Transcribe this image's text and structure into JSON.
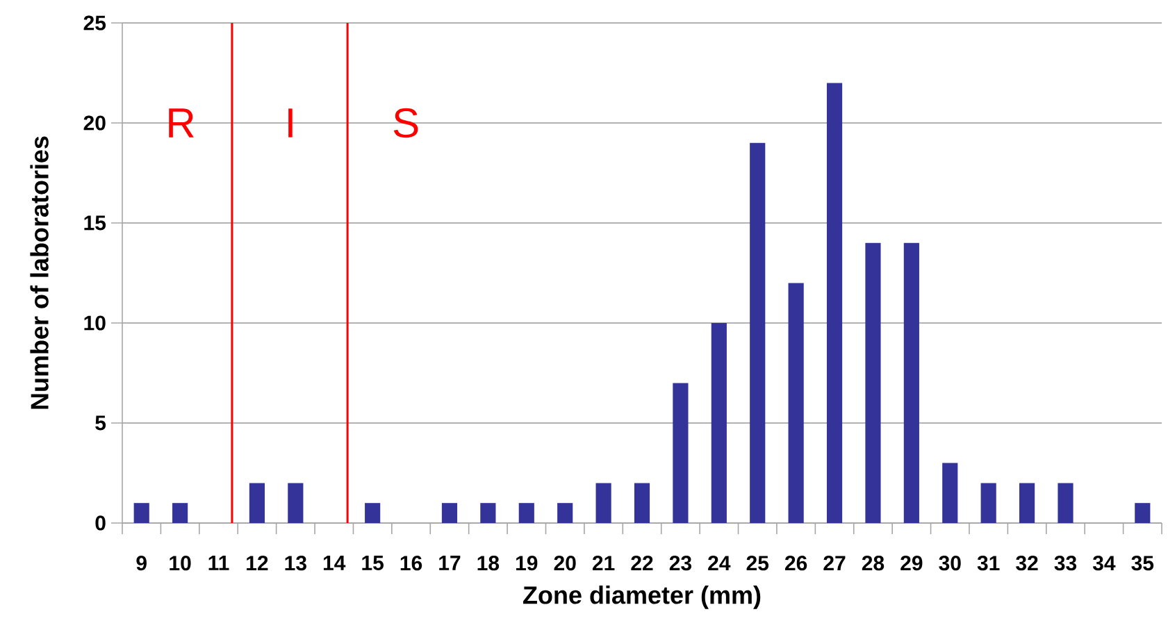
{
  "chart_data": {
    "type": "bar",
    "xlabel": "Zone diameter (mm)",
    "ylabel": "Number  of laboratories",
    "x": [
      9,
      10,
      11,
      12,
      13,
      14,
      15,
      16,
      17,
      18,
      19,
      20,
      21,
      22,
      23,
      24,
      25,
      26,
      27,
      28,
      29,
      30,
      31,
      32,
      33,
      34,
      35
    ],
    "values": [
      1,
      1,
      0,
      2,
      2,
      0,
      1,
      0,
      1,
      1,
      1,
      1,
      2,
      2,
      7,
      10,
      19,
      12,
      22,
      14,
      14,
      3,
      2,
      2,
      2,
      0,
      1
    ],
    "color": "#333399",
    "xlim": [
      8.5,
      35.5
    ],
    "xticks": [
      9,
      10,
      11,
      12,
      13,
      14,
      15,
      16,
      17,
      18,
      19,
      20,
      21,
      22,
      23,
      24,
      25,
      26,
      27,
      28,
      29,
      30,
      31,
      32,
      33,
      34,
      35
    ],
    "ylim": [
      0,
      25
    ],
    "yticks": [
      0,
      5,
      10,
      15,
      20,
      25
    ],
    "grid": "y",
    "ref_lines": [
      {
        "axis": "x",
        "value": 11.35,
        "color": "#ff0000"
      },
      {
        "axis": "x",
        "value": 14.35,
        "color": "#ff0000"
      }
    ],
    "annotations": [
      "R",
      "I",
      "S"
    ]
  }
}
